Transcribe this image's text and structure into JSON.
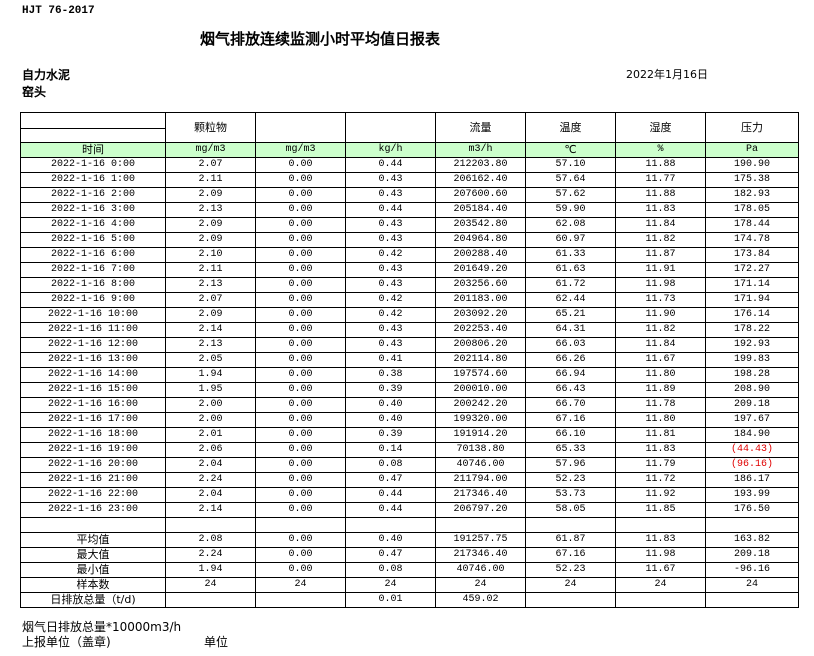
{
  "standard": "HJT  76-2017",
  "title": "烟气排放连续监测小时平均值日报表",
  "company": "自力水泥",
  "location": "窑头",
  "date": "2022年1月16日",
  "header": [
    "",
    "颗粒物",
    "",
    "",
    "流量",
    "温度",
    "湿度",
    "压力"
  ],
  "units": [
    "时间",
    "mg/m3",
    "mg/m3",
    "kg/h",
    "m3/h",
    "℃",
    "%",
    "Pa"
  ],
  "rows": [
    [
      "2022-1-16 0:00",
      "2.07",
      "0.00",
      "0.44",
      "212203.80",
      "57.10",
      "11.88",
      "190.90"
    ],
    [
      "2022-1-16 1:00",
      "2.11",
      "0.00",
      "0.43",
      "206162.40",
      "57.64",
      "11.77",
      "175.38"
    ],
    [
      "2022-1-16 2:00",
      "2.09",
      "0.00",
      "0.43",
      "207600.60",
      "57.62",
      "11.88",
      "182.93"
    ],
    [
      "2022-1-16 3:00",
      "2.13",
      "0.00",
      "0.44",
      "205184.40",
      "59.90",
      "11.83",
      "178.05"
    ],
    [
      "2022-1-16 4:00",
      "2.09",
      "0.00",
      "0.43",
      "203542.80",
      "62.08",
      "11.84",
      "178.44"
    ],
    [
      "2022-1-16 5:00",
      "2.09",
      "0.00",
      "0.43",
      "204964.80",
      "60.97",
      "11.82",
      "174.78"
    ],
    [
      "2022-1-16 6:00",
      "2.10",
      "0.00",
      "0.42",
      "200288.40",
      "61.33",
      "11.87",
      "173.84"
    ],
    [
      "2022-1-16 7:00",
      "2.11",
      "0.00",
      "0.43",
      "201649.20",
      "61.63",
      "11.91",
      "172.27"
    ],
    [
      "2022-1-16 8:00",
      "2.13",
      "0.00",
      "0.43",
      "203256.60",
      "61.72",
      "11.98",
      "171.14"
    ],
    [
      "2022-1-16 9:00",
      "2.07",
      "0.00",
      "0.42",
      "201183.00",
      "62.44",
      "11.73",
      "171.94"
    ],
    [
      "2022-1-16 10:00",
      "2.09",
      "0.00",
      "0.42",
      "203092.20",
      "65.21",
      "11.90",
      "176.14"
    ],
    [
      "2022-1-16 11:00",
      "2.14",
      "0.00",
      "0.43",
      "202253.40",
      "64.31",
      "11.82",
      "178.22"
    ],
    [
      "2022-1-16 12:00",
      "2.13",
      "0.00",
      "0.43",
      "200806.20",
      "66.03",
      "11.84",
      "192.93"
    ],
    [
      "2022-1-16 13:00",
      "2.05",
      "0.00",
      "0.41",
      "202114.80",
      "66.26",
      "11.67",
      "199.83"
    ],
    [
      "2022-1-16 14:00",
      "1.94",
      "0.00",
      "0.38",
      "197574.60",
      "66.94",
      "11.80",
      "198.28"
    ],
    [
      "2022-1-16 15:00",
      "1.95",
      "0.00",
      "0.39",
      "200010.00",
      "66.43",
      "11.89",
      "208.90"
    ],
    [
      "2022-1-16 16:00",
      "2.00",
      "0.00",
      "0.40",
      "200242.20",
      "66.70",
      "11.78",
      "209.18"
    ],
    [
      "2022-1-16 17:00",
      "2.00",
      "0.00",
      "0.40",
      "199320.00",
      "67.16",
      "11.80",
      "197.67"
    ],
    [
      "2022-1-16 18:00",
      "2.01",
      "0.00",
      "0.39",
      "191914.20",
      "66.10",
      "11.81",
      "184.90"
    ],
    [
      "2022-1-16 19:00",
      "2.06",
      "0.00",
      "0.14",
      "70138.80",
      "65.33",
      "11.83",
      "(44.43)"
    ],
    [
      "2022-1-16 20:00",
      "2.04",
      "0.00",
      "0.08",
      "40746.00",
      "57.96",
      "11.79",
      "(96.16)"
    ],
    [
      "2022-1-16 21:00",
      "2.24",
      "0.00",
      "0.47",
      "211794.00",
      "52.23",
      "11.72",
      "186.17"
    ],
    [
      "2022-1-16 22:00",
      "2.04",
      "0.00",
      "0.44",
      "217346.40",
      "53.73",
      "11.92",
      "193.99"
    ],
    [
      "2022-1-16 23:00",
      "2.14",
      "0.00",
      "0.44",
      "206797.20",
      "58.05",
      "11.85",
      "176.50"
    ]
  ],
  "summary": [
    [
      "平均值",
      "2.08",
      "0.00",
      "0.40",
      "191257.75",
      "61.87",
      "11.83",
      "163.82"
    ],
    [
      "最大值",
      "2.24",
      "0.00",
      "0.47",
      "217346.40",
      "67.16",
      "11.98",
      "209.18"
    ],
    [
      "最小值",
      "1.94",
      "0.00",
      "0.08",
      "40746.00",
      "52.23",
      "11.67",
      "-96.16"
    ],
    [
      "样本数",
      "24",
      "24",
      "24",
      "24",
      "24",
      "24",
      "24"
    ],
    [
      "日排放总量（t/d)",
      "",
      "",
      "0.01",
      "459.02",
      "",
      "",
      ""
    ]
  ],
  "negative_color": "#e00000",
  "units_row_color": "#ccffcc",
  "footer": {
    "note": "烟气日排放总量*10000m3/h",
    "reporter": "上报单位（盖章)",
    "unit": "单位"
  }
}
